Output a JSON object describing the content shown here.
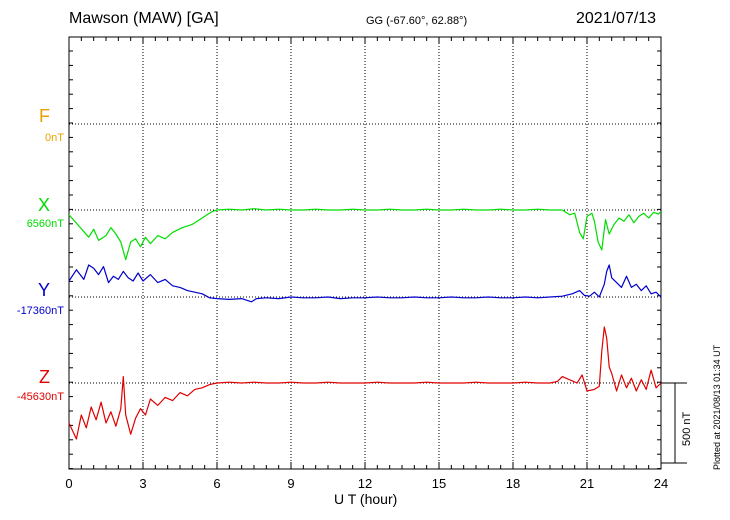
{
  "header": {
    "station": "Mawson (MAW)  [GA]",
    "coords": "GG (-67.60°,  62.88°)",
    "date": "2021/07/13"
  },
  "footer": {
    "plotted": "Plotted at 2021/08/13 01:34  UT"
  },
  "scale_bar": {
    "label": "500 nT",
    "value_nT": 500
  },
  "colors": {
    "F": "#e8a000",
    "X": "#00dd00",
    "Y": "#0000cc",
    "Z": "#e00000"
  },
  "chart_data": {
    "type": "line",
    "title": "Mawson (MAW)  [GA]",
    "xlabel": "U T (hour)",
    "xlim": [
      0,
      24
    ],
    "x_ticks": [
      0,
      3,
      6,
      9,
      12,
      15,
      18,
      21,
      24
    ],
    "grid": true,
    "components": [
      {
        "name": "F",
        "baseline_label": "0nT",
        "color": "#e8a000",
        "points": []
      },
      {
        "name": "X",
        "baseline_label": "6560nT",
        "color": "#00dd00",
        "points": [
          [
            0,
            -30
          ],
          [
            0.4,
            -100
          ],
          [
            0.8,
            -170
          ],
          [
            1.0,
            -120
          ],
          [
            1.2,
            -190
          ],
          [
            1.5,
            -160
          ],
          [
            1.7,
            -110
          ],
          [
            1.9,
            -150
          ],
          [
            2.1,
            -200
          ],
          [
            2.3,
            -310
          ],
          [
            2.5,
            -200
          ],
          [
            2.7,
            -180
          ],
          [
            2.9,
            -230
          ],
          [
            3.1,
            -170
          ],
          [
            3.3,
            -210
          ],
          [
            3.6,
            -160
          ],
          [
            3.9,
            -180
          ],
          [
            4.2,
            -140
          ],
          [
            4.6,
            -110
          ],
          [
            5.0,
            -90
          ],
          [
            5.3,
            -60
          ],
          [
            5.6,
            -30
          ],
          [
            5.8,
            -10
          ],
          [
            6.0,
            0
          ],
          [
            6.5,
            5
          ],
          [
            7.0,
            0
          ],
          [
            7.5,
            8
          ],
          [
            8.0,
            0
          ],
          [
            8.5,
            5
          ],
          [
            9.0,
            0
          ],
          [
            9.5,
            0
          ],
          [
            10,
            5
          ],
          [
            10.5,
            0
          ],
          [
            11,
            0
          ],
          [
            11.5,
            5
          ],
          [
            12,
            0
          ],
          [
            12.5,
            0
          ],
          [
            13,
            5
          ],
          [
            13.5,
            0
          ],
          [
            14,
            0
          ],
          [
            14.5,
            5
          ],
          [
            15,
            0
          ],
          [
            15.5,
            0
          ],
          [
            16,
            5
          ],
          [
            16.5,
            0
          ],
          [
            17,
            0
          ],
          [
            17.5,
            5
          ],
          [
            18,
            0
          ],
          [
            18.5,
            0
          ],
          [
            19,
            5
          ],
          [
            19.5,
            0
          ],
          [
            20.0,
            0
          ],
          [
            20.3,
            -30
          ],
          [
            20.5,
            -20
          ],
          [
            20.7,
            -140
          ],
          [
            20.85,
            -180
          ],
          [
            21.0,
            -40
          ],
          [
            21.2,
            -20
          ],
          [
            21.3,
            -70
          ],
          [
            21.45,
            -200
          ],
          [
            21.6,
            -250
          ],
          [
            21.75,
            -60
          ],
          [
            21.9,
            -150
          ],
          [
            22.1,
            -90
          ],
          [
            22.3,
            -50
          ],
          [
            22.5,
            -70
          ],
          [
            22.7,
            -30
          ],
          [
            22.9,
            -80
          ],
          [
            23.1,
            -40
          ],
          [
            23.3,
            -20
          ],
          [
            23.5,
            -50
          ],
          [
            23.7,
            -15
          ],
          [
            23.9,
            -25
          ],
          [
            24,
            -10
          ]
        ]
      },
      {
        "name": "Y",
        "baseline_label": "-17360nT",
        "color": "#0000cc",
        "points": [
          [
            0,
            100
          ],
          [
            0.3,
            170
          ],
          [
            0.6,
            110
          ],
          [
            0.8,
            200
          ],
          [
            1.0,
            180
          ],
          [
            1.2,
            140
          ],
          [
            1.4,
            190
          ],
          [
            1.6,
            90
          ],
          [
            1.8,
            130
          ],
          [
            2.0,
            110
          ],
          [
            2.2,
            160
          ],
          [
            2.4,
            120
          ],
          [
            2.6,
            100
          ],
          [
            2.8,
            150
          ],
          [
            3.0,
            100
          ],
          [
            3.3,
            140
          ],
          [
            3.6,
            90
          ],
          [
            3.9,
            110
          ],
          [
            4.2,
            70
          ],
          [
            4.5,
            60
          ],
          [
            4.8,
            40
          ],
          [
            5.1,
            30
          ],
          [
            5.4,
            20
          ],
          [
            5.7,
            -5
          ],
          [
            6.0,
            -10
          ],
          [
            6.5,
            -15
          ],
          [
            7.0,
            -10
          ],
          [
            7.4,
            -30
          ],
          [
            7.6,
            -10
          ],
          [
            8.0,
            -5
          ],
          [
            8.5,
            -10
          ],
          [
            9.0,
            0
          ],
          [
            9.5,
            -5
          ],
          [
            10,
            -5
          ],
          [
            10.5,
            0
          ],
          [
            11,
            -10
          ],
          [
            11.5,
            -5
          ],
          [
            12,
            -5
          ],
          [
            12.5,
            0
          ],
          [
            13,
            -5
          ],
          [
            13.5,
            -5
          ],
          [
            14,
            0
          ],
          [
            14.5,
            -5
          ],
          [
            15,
            -5
          ],
          [
            15.5,
            0
          ],
          [
            16,
            -5
          ],
          [
            16.5,
            -5
          ],
          [
            17,
            0
          ],
          [
            17.5,
            -5
          ],
          [
            18,
            -5
          ],
          [
            18.5,
            0
          ],
          [
            19,
            -5
          ],
          [
            19.5,
            0
          ],
          [
            20.0,
            5
          ],
          [
            20.4,
            20
          ],
          [
            20.7,
            40
          ],
          [
            20.9,
            10
          ],
          [
            21.1,
            5
          ],
          [
            21.3,
            30
          ],
          [
            21.5,
            0
          ],
          [
            21.7,
            80
          ],
          [
            21.8,
            160
          ],
          [
            21.9,
            200
          ],
          [
            22.0,
            120
          ],
          [
            22.2,
            90
          ],
          [
            22.4,
            60
          ],
          [
            22.6,
            130
          ],
          [
            22.8,
            60
          ],
          [
            23.0,
            80
          ],
          [
            23.2,
            40
          ],
          [
            23.4,
            70
          ],
          [
            23.6,
            20
          ],
          [
            23.8,
            30
          ],
          [
            24,
            0
          ]
        ]
      },
      {
        "name": "Z",
        "baseline_label": "-45630nT",
        "color": "#e00000",
        "points": [
          [
            0,
            -250
          ],
          [
            0.3,
            -350
          ],
          [
            0.5,
            -200
          ],
          [
            0.7,
            -280
          ],
          [
            0.9,
            -150
          ],
          [
            1.1,
            -230
          ],
          [
            1.3,
            -120
          ],
          [
            1.5,
            -250
          ],
          [
            1.7,
            -180
          ],
          [
            1.9,
            -270
          ],
          [
            2.1,
            -160
          ],
          [
            2.2,
            40
          ],
          [
            2.3,
            -200
          ],
          [
            2.5,
            -320
          ],
          [
            2.7,
            -220
          ],
          [
            2.9,
            -160
          ],
          [
            3.1,
            -200
          ],
          [
            3.3,
            -100
          ],
          [
            3.6,
            -140
          ],
          [
            3.9,
            -90
          ],
          [
            4.2,
            -110
          ],
          [
            4.5,
            -60
          ],
          [
            4.8,
            -80
          ],
          [
            5.1,
            -40
          ],
          [
            5.4,
            -30
          ],
          [
            5.7,
            -10
          ],
          [
            6.0,
            0
          ],
          [
            6.5,
            5
          ],
          [
            7.0,
            0
          ],
          [
            7.5,
            5
          ],
          [
            8.0,
            0
          ],
          [
            8.5,
            0
          ],
          [
            9.0,
            5
          ],
          [
            9.5,
            0
          ],
          [
            10,
            0
          ],
          [
            10.5,
            5
          ],
          [
            11,
            0
          ],
          [
            11.5,
            0
          ],
          [
            12,
            0
          ],
          [
            12.5,
            5
          ],
          [
            13,
            0
          ],
          [
            13.5,
            0
          ],
          [
            14,
            0
          ],
          [
            14.5,
            5
          ],
          [
            15,
            0
          ],
          [
            15.5,
            0
          ],
          [
            16,
            0
          ],
          [
            16.5,
            5
          ],
          [
            17,
            0
          ],
          [
            17.5,
            0
          ],
          [
            18,
            0
          ],
          [
            18.5,
            5
          ],
          [
            19,
            0
          ],
          [
            19.5,
            0
          ],
          [
            19.8,
            10
          ],
          [
            20.0,
            40
          ],
          [
            20.3,
            20
          ],
          [
            20.6,
            0
          ],
          [
            20.8,
            50
          ],
          [
            21.0,
            -50
          ],
          [
            21.3,
            -40
          ],
          [
            21.5,
            -20
          ],
          [
            21.6,
            200
          ],
          [
            21.7,
            350
          ],
          [
            21.8,
            280
          ],
          [
            21.9,
            100
          ],
          [
            22.0,
            60
          ],
          [
            22.2,
            -50
          ],
          [
            22.4,
            50
          ],
          [
            22.6,
            -30
          ],
          [
            22.8,
            30
          ],
          [
            23.0,
            -50
          ],
          [
            23.2,
            20
          ],
          [
            23.4,
            -40
          ],
          [
            23.6,
            80
          ],
          [
            23.8,
            -30
          ],
          [
            24,
            0
          ]
        ]
      }
    ]
  }
}
